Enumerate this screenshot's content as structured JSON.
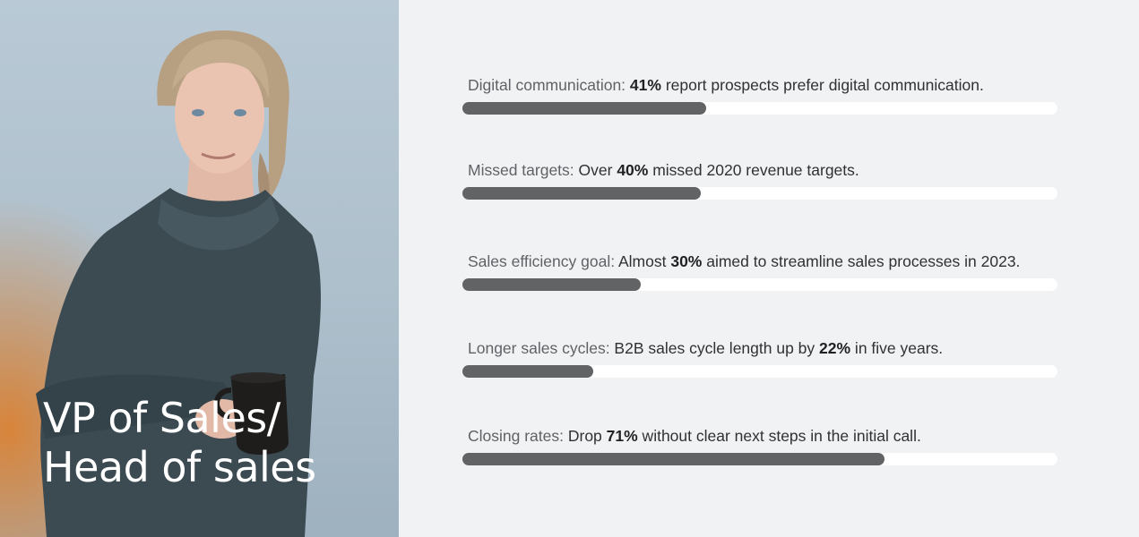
{
  "persona": {
    "title_line1": "VP of Sales/",
    "title_line2": "Head of sales"
  },
  "colors": {
    "bar_fill": "#626365",
    "bar_track": "#ffffff",
    "page_background": "#f1f2f3",
    "title_text": "#ffffff"
  },
  "stats": [
    {
      "label": "Digital communication:",
      "pre": " ",
      "value": "41%",
      "post": " report prospects prefer digital communication.",
      "percent": 41
    },
    {
      "label": "Missed targets:",
      "pre": " Over ",
      "value": "40%",
      "post": " missed 2020 revenue targets.",
      "percent": 40
    },
    {
      "label": "Sales efficiency goal:",
      "pre": " Almost ",
      "value": "30%",
      "post": " aimed to streamline sales processes in 2023.",
      "percent": 30
    },
    {
      "label": "Longer sales cycles:",
      "pre": " B2B sales cycle length up by ",
      "value": "22%",
      "post": " in five years.",
      "percent": 22
    },
    {
      "label": "Closing rates:",
      "pre": " Drop ",
      "value": "71%",
      "post": " without clear next steps in the initial call.",
      "percent": 71
    }
  ]
}
